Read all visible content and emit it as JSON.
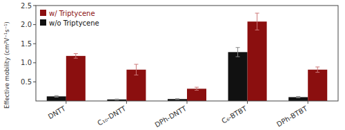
{
  "chart_data": {
    "type": "bar",
    "categories": [
      "DNTT",
      "C₁₀-DNTT",
      "DPh-DNTT",
      "C₆-BTBT",
      "DPh-BTBT"
    ],
    "series": [
      {
        "name": "w/o Triptycene",
        "color": "#111111",
        "values": [
          0.12,
          0.04,
          0.05,
          1.28,
          0.1
        ],
        "errors": [
          0.02,
          0.01,
          0.01,
          0.12,
          0.015
        ]
      },
      {
        "name": "w/ Triptycene",
        "color": "#8b0f0f",
        "values": [
          1.18,
          0.82,
          0.32,
          2.08,
          0.82
        ],
        "errors": [
          0.06,
          0.14,
          0.04,
          0.22,
          0.07
        ]
      }
    ],
    "ylabel": "Effective mobility (cm²V⁻¹s⁻¹)",
    "ylim": [
      0,
      2.5
    ],
    "yticks": [
      0.5,
      {
        "value": 1.0,
        "label": "1.0"
      },
      1.5,
      {
        "value": 2.0,
        "label": "2.0"
      },
      2.5
    ],
    "grid": false,
    "legend": "upper left"
  }
}
